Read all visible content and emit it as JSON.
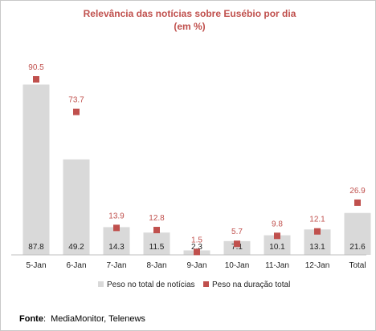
{
  "chart_data": {
    "type": "bar",
    "title": "Relevância das notícias sobre Eusébio por dia",
    "subtitle": "(em %)",
    "categories": [
      "5-Jan",
      "6-Jan",
      "7-Jan",
      "8-Jan",
      "9-Jan",
      "10-Jan",
      "11-Jan",
      "12-Jan",
      "Total"
    ],
    "series": [
      {
        "name": "Peso no total de notícias",
        "kind": "bar",
        "color": "#d9d9d9",
        "values": [
          87.8,
          49.2,
          14.3,
          11.5,
          2.3,
          7.1,
          10.1,
          13.1,
          21.6
        ]
      },
      {
        "name": "Peso na duração total",
        "kind": "marker",
        "color": "#c0504d",
        "values": [
          90.5,
          73.7,
          13.9,
          12.8,
          1.5,
          5.7,
          9.8,
          12.1,
          26.9
        ]
      }
    ],
    "ylim": [
      0,
      100
    ],
    "grid": false,
    "legend_position": "bottom"
  },
  "source": {
    "label": "Fonte",
    "text": "MediaMonitor, Telenews"
  }
}
